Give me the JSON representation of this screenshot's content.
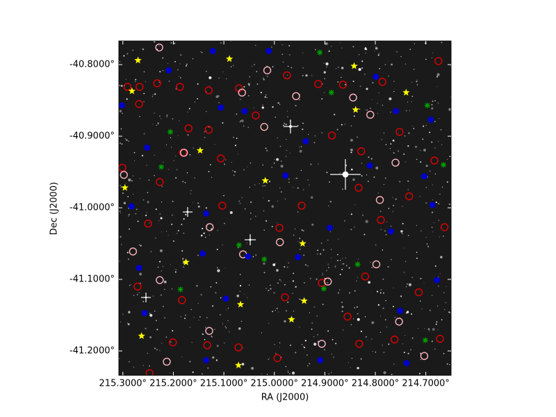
{
  "chart_data": {
    "type": "scatter",
    "xlabel": "RA (J2000)",
    "ylabel": "Dec (J2000)",
    "xlim": [
      215.308,
      214.65
    ],
    "ylim": [
      -41.234,
      -40.767
    ],
    "xticks": [
      {
        "value": 215.3,
        "label": "215.3000°"
      },
      {
        "value": 215.2,
        "label": "215.2000°"
      },
      {
        "value": 215.1,
        "label": "215.1000°"
      },
      {
        "value": 215.0,
        "label": "215.0000°"
      },
      {
        "value": 214.9,
        "label": "214.9000°"
      },
      {
        "value": 214.8,
        "label": "214.8000°"
      },
      {
        "value": 214.7,
        "label": "214.7000°"
      }
    ],
    "yticks": [
      {
        "value": -40.8,
        "label": "-40.8000°"
      },
      {
        "value": -40.9,
        "label": "-40.9000°"
      },
      {
        "value": -41.0,
        "label": "-41.0000°"
      },
      {
        "value": -41.1,
        "label": "-41.1000°"
      },
      {
        "value": -41.2,
        "label": "-41.2000°"
      }
    ],
    "background": "#1a1a1a",
    "series": [
      {
        "color": "#e00000",
        "marker": "ring",
        "x": [
          215.291,
          215.267,
          215.232,
          215.187,
          215.13,
          215.07,
          214.975,
          214.913,
          214.864,
          214.786,
          214.675,
          215.268,
          215.17,
          215.13,
          215.037,
          214.886,
          214.828,
          214.752,
          214.683,
          215.301,
          215.227,
          215.181,
          215.106,
          214.946,
          214.833,
          214.733,
          214.663,
          215.25,
          215.103,
          214.99,
          214.789,
          215.271,
          215.183,
          214.906,
          214.82,
          214.714,
          215.201,
          215.133,
          214.994,
          214.832,
          214.762,
          214.672,
          215.247,
          215.071,
          214.979,
          214.855
        ],
        "y": [
          -40.831,
          -40.831,
          -40.826,
          -40.831,
          -40.836,
          -40.833,
          -40.815,
          -40.827,
          -40.828,
          -40.824,
          -40.795,
          -40.855,
          -40.889,
          -40.891,
          -40.871,
          -40.899,
          -40.921,
          -40.894,
          -40.934,
          -40.944,
          -40.964,
          -40.923,
          -40.931,
          -40.997,
          -40.972,
          -40.984,
          -41.027,
          -41.022,
          -40.997,
          -41.028,
          -41.017,
          -41.11,
          -41.129,
          -41.105,
          -41.096,
          -41.118,
          -41.188,
          -41.192,
          -41.21,
          -41.19,
          -41.184,
          -41.183,
          -41.231,
          -41.195,
          -41.125,
          -41.152
        ]
      },
      {
        "color": "#ffb6c1",
        "marker": "ring",
        "x": [
          215.228,
          215.014,
          214.957,
          215.064,
          214.844,
          214.81,
          215.02,
          214.76,
          215.179,
          215.298,
          215.128,
          214.791,
          214.989,
          215.227,
          214.894,
          214.753,
          215.129,
          214.906,
          215.213,
          214.703,
          215.062,
          215.28,
          214.798
        ],
        "y": [
          -40.776,
          -40.808,
          -40.844,
          -40.839,
          -40.846,
          -40.87,
          -40.887,
          -40.937,
          -40.923,
          -40.954,
          -41.027,
          -40.989,
          -41.048,
          -41.101,
          -41.103,
          -41.159,
          -41.172,
          -41.19,
          -41.215,
          -41.207,
          -41.065,
          -41.061,
          -41.079
        ]
      },
      {
        "color": "#0000cc",
        "marker": "dot",
        "x": [
          215.209,
          215.122,
          215.011,
          214.799,
          215.302,
          215.106,
          215.059,
          214.759,
          214.69,
          215.252,
          214.978,
          214.938,
          214.811,
          214.703,
          215.283,
          215.135,
          214.89,
          214.769,
          214.687,
          215.052,
          215.142,
          214.953,
          215.268,
          215.096,
          214.678,
          215.257,
          214.751,
          215.135,
          214.909,
          214.738
        ],
        "y": [
          -40.808,
          -40.781,
          -40.781,
          -40.817,
          -40.857,
          -40.86,
          -40.865,
          -40.865,
          -40.877,
          -40.916,
          -40.955,
          -40.907,
          -40.941,
          -40.956,
          -40.998,
          -41.008,
          -41.028,
          -41.033,
          -40.996,
          -41.068,
          -41.064,
          -41.069,
          -41.084,
          -41.127,
          -41.101,
          -41.147,
          -41.144,
          -41.213,
          -41.213,
          -41.217
        ]
      },
      {
        "color": "#00a000",
        "marker": "cross",
        "x": [
          214.91,
          214.887,
          214.697,
          215.206,
          215.224,
          214.665,
          215.07,
          215.02,
          214.835,
          215.186,
          214.902,
          214.701
        ],
        "y": [
          -40.783,
          -40.839,
          -40.857,
          -40.894,
          -40.943,
          -40.94,
          -41.052,
          -41.072,
          -41.079,
          -41.114,
          -41.113,
          -41.185
        ]
      },
      {
        "color": "#ffff00",
        "marker": "star",
        "x": [
          215.27,
          215.089,
          214.842,
          214.739,
          215.282,
          214.839,
          215.147,
          215.018,
          215.296,
          214.944,
          215.175,
          215.067,
          214.941,
          214.966,
          215.263,
          215.071
        ],
        "y": [
          -40.794,
          -40.792,
          -40.802,
          -40.839,
          -40.837,
          -40.863,
          -40.92,
          -40.962,
          -40.972,
          -41.05,
          -41.076,
          -41.135,
          -41.13,
          -41.156,
          -41.179,
          -41.22
        ]
      }
    ]
  }
}
